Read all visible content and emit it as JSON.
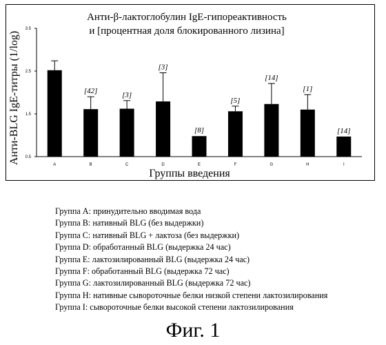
{
  "chart_data": {
    "type": "bar",
    "title_lines": [
      "Анти-β-лактоглобулин IgE-гипореактивность",
      "и [процентная доля блокированного лизина]"
    ],
    "xlabel": "Группы введения",
    "ylabel": "Анти-BLG IgE-титры (1/log)",
    "categories": [
      "A",
      "B",
      "C",
      "D",
      "E",
      "F",
      "G",
      "H",
      "I"
    ],
    "values": [
      2.52,
      1.61,
      1.62,
      1.79,
      0.98,
      1.56,
      1.73,
      1.6,
      0.97
    ],
    "error_upper": [
      0.22,
      0.29,
      0.19,
      0.67,
      0.0,
      0.12,
      0.48,
      0.35,
      0.0
    ],
    "annotations": [
      "",
      "[42]",
      "[3]",
      "[3]",
      "[8]",
      "[5]",
      "[14]",
      "[1]",
      "[14]"
    ],
    "yticks": [
      "3.5",
      "2.5",
      "1.5",
      "0.5"
    ],
    "ylim": [
      0.5,
      3.5
    ],
    "bar_color": "#000000"
  },
  "legend": [
    "Группа А: принудительно вводимая вода",
    "Группа В: нативный BLG (без выдержки)",
    "Группа С: нативный BLG + лактоза (без выдержки)",
    "Группа D: обработанный BLG  (выдержка 24 час)",
    "Группа Е: лактозилированный BLG (выдержка 24 час)",
    "Группа F: обработанный BLG (выдержка 72 час)",
    "Группа G: лактозилированный BLG (выдержка 72 час)",
    "Группа Н: нативные сывороточные белки низкой степени лактозилирования",
    "Группа I: сывороточные белки высокой степени лактозилирования"
  ],
  "caption": "Фиг. 1"
}
